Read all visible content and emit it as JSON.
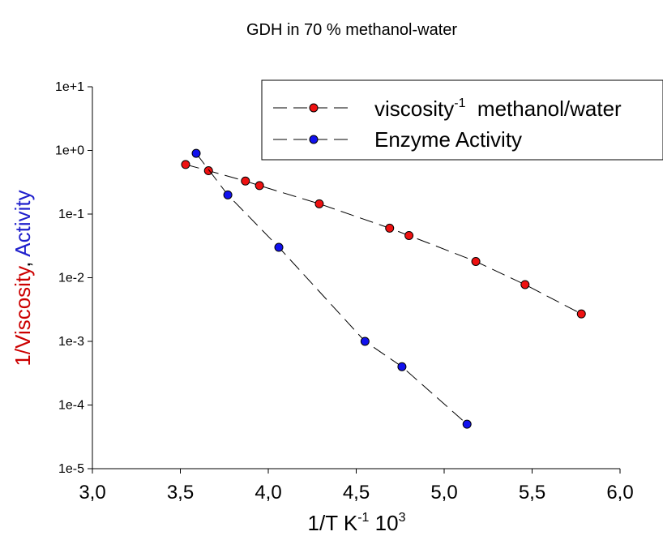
{
  "chart_data": {
    "type": "scatter",
    "title": "GDH in 70 % methanol-water",
    "xlabel": {
      "base": "1/T K",
      "exp1": "-1",
      "mid": " 10",
      "exp2": "3"
    },
    "ylabel": {
      "part1": "1/Viscosity",
      "sep": ", ",
      "part2": "Activity",
      "color1": "#cc0000",
      "color2": "#1f1fcc"
    },
    "xlim": [
      3.0,
      6.0
    ],
    "x_ticks": [
      "3,0",
      "3,5",
      "4,0",
      "4,5",
      "5,0",
      "5,5",
      "6,0"
    ],
    "x_tick_values": [
      3.0,
      3.5,
      4.0,
      4.5,
      5.0,
      5.5,
      6.0
    ],
    "y_scale": "log",
    "ylim": [
      1e-05,
      10
    ],
    "y_ticks": [
      "1e-5",
      "1e-4",
      "1e-3",
      "1e-2",
      "1e-1",
      "1e+0",
      "1e+1"
    ],
    "y_tick_values": [
      1e-05,
      0.0001,
      0.001,
      0.01,
      0.1,
      1,
      10
    ],
    "grid": false,
    "legend_position": "top-right",
    "series": [
      {
        "name": "viscosity",
        "name_sup": "-1",
        "name_rest": "  methanol/water",
        "color": "#ee1111",
        "line": "dashed",
        "x": [
          3.53,
          3.66,
          3.87,
          3.95,
          4.29,
          4.69,
          4.8,
          5.18,
          5.46,
          5.78
        ],
        "y": [
          0.6,
          0.48,
          0.33,
          0.28,
          0.145,
          0.06,
          0.046,
          0.018,
          0.0078,
          0.0027
        ]
      },
      {
        "name": "Enzyme Activity",
        "name_sup": "",
        "name_rest": "",
        "color": "#1111ee",
        "line": "dashed",
        "x": [
          3.59,
          3.77,
          4.06,
          4.55,
          4.76,
          5.13
        ],
        "y": [
          0.9,
          0.2,
          0.03,
          0.001,
          0.0004,
          5e-05
        ]
      }
    ]
  }
}
